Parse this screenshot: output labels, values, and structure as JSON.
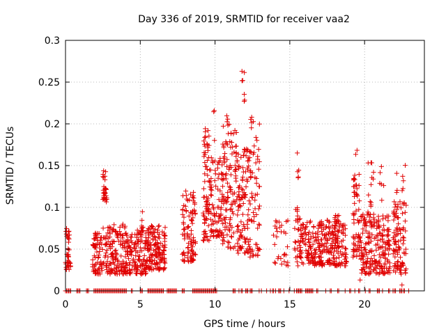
{
  "chart_data": {
    "type": "scatter",
    "title": "Day 336 of 2019, SRMTID for receiver vaa2",
    "xlabel": "GPS time / hours",
    "ylabel": "SRMTID / TECUs",
    "xlim": [
      0,
      24
    ],
    "ylim": [
      0,
      0.3
    ],
    "xticks": [
      0,
      5,
      10,
      15,
      20
    ],
    "yticks": [
      0,
      0.05,
      0.1,
      0.15,
      0.2,
      0.25,
      0.3
    ],
    "xtick_labels": [
      "0",
      "5",
      "10",
      "15",
      "20"
    ],
    "ytick_labels": [
      "0",
      "0.05",
      "0.1",
      "0.15",
      "0.2",
      "0.25",
      "0.3"
    ],
    "grid": true,
    "marker": "+",
    "color": "#e00000",
    "series": [
      {
        "name": "SRMTID",
        "clusters": [
          {
            "x0": 0.0,
            "x1": 0.35,
            "ymin": 0.025,
            "ymax": 0.075,
            "n": 40
          },
          {
            "x0": 1.8,
            "x1": 2.5,
            "ymin": 0.02,
            "ymax": 0.07,
            "n": 70
          },
          {
            "x0": 2.5,
            "x1": 2.8,
            "ymin": 0.105,
            "ymax": 0.145,
            "n": 30
          },
          {
            "x0": 2.5,
            "x1": 4.0,
            "ymin": 0.02,
            "ymax": 0.08,
            "n": 140
          },
          {
            "x0": 4.0,
            "x1": 5.5,
            "ymin": 0.02,
            "ymax": 0.075,
            "n": 150
          },
          {
            "x0": 5.0,
            "x1": 5.2,
            "ymin": 0.07,
            "ymax": 0.097,
            "n": 8
          },
          {
            "x0": 5.5,
            "x1": 6.7,
            "ymin": 0.025,
            "ymax": 0.08,
            "n": 140
          },
          {
            "x0": 7.8,
            "x1": 8.7,
            "ymin": 0.035,
            "ymax": 0.12,
            "n": 100
          },
          {
            "x0": 9.2,
            "x1": 9.6,
            "ymin": 0.06,
            "ymax": 0.21,
            "n": 70
          },
          {
            "x0": 9.6,
            "x1": 10.5,
            "ymin": 0.065,
            "ymax": 0.16,
            "n": 90
          },
          {
            "x0": 9.9,
            "x1": 10.0,
            "ymin": 0.18,
            "ymax": 0.222,
            "n": 3
          },
          {
            "x0": 10.5,
            "x1": 11.5,
            "ymin": 0.05,
            "ymax": 0.2,
            "n": 120
          },
          {
            "x0": 10.7,
            "x1": 10.9,
            "ymin": 0.19,
            "ymax": 0.222,
            "n": 4
          },
          {
            "x0": 11.5,
            "x1": 12.4,
            "ymin": 0.045,
            "ymax": 0.17,
            "n": 110
          },
          {
            "x0": 11.8,
            "x1": 12.0,
            "ymin": 0.225,
            "ymax": 0.265,
            "n": 4
          },
          {
            "x0": 12.3,
            "x1": 13.0,
            "ymin": 0.04,
            "ymax": 0.21,
            "n": 60
          },
          {
            "x0": 13.9,
            "x1": 14.9,
            "ymin": 0.03,
            "ymax": 0.085,
            "n": 30
          },
          {
            "x0": 15.3,
            "x1": 15.7,
            "ymin": 0.03,
            "ymax": 0.1,
            "n": 30
          },
          {
            "x0": 15.4,
            "x1": 15.6,
            "ymin": 0.125,
            "ymax": 0.172,
            "n": 5
          },
          {
            "x0": 15.7,
            "x1": 17.2,
            "ymin": 0.03,
            "ymax": 0.085,
            "n": 140
          },
          {
            "x0": 17.2,
            "x1": 18.8,
            "ymin": 0.03,
            "ymax": 0.085,
            "n": 150
          },
          {
            "x0": 18.0,
            "x1": 18.6,
            "ymin": 0.07,
            "ymax": 0.092,
            "n": 10
          },
          {
            "x0": 19.2,
            "x1": 19.7,
            "ymin": 0.04,
            "ymax": 0.14,
            "n": 60
          },
          {
            "x0": 19.4,
            "x1": 19.5,
            "ymin": 0.16,
            "ymax": 0.178,
            "n": 2
          },
          {
            "x0": 19.7,
            "x1": 20.7,
            "ymin": 0.02,
            "ymax": 0.095,
            "n": 110
          },
          {
            "x0": 20.2,
            "x1": 20.6,
            "ymin": 0.1,
            "ymax": 0.155,
            "n": 12
          },
          {
            "x0": 20.7,
            "x1": 21.7,
            "ymin": 0.02,
            "ymax": 0.09,
            "n": 110
          },
          {
            "x0": 21.0,
            "x1": 21.3,
            "ymin": 0.1,
            "ymax": 0.15,
            "n": 6
          },
          {
            "x0": 21.9,
            "x1": 22.8,
            "ymin": 0.02,
            "ymax": 0.11,
            "n": 100
          },
          {
            "x0": 22.1,
            "x1": 22.8,
            "ymin": 0.115,
            "ymax": 0.155,
            "n": 8
          }
        ],
        "zero_ranges": [
          [
            0.0,
            0.35
          ],
          [
            0.75,
            0.85
          ],
          [
            0.9,
            1.0
          ],
          [
            1.4,
            1.55
          ],
          [
            1.9,
            4.1
          ],
          [
            4.4,
            4.5
          ],
          [
            5.0,
            5.15
          ],
          [
            5.5,
            6.6
          ],
          [
            6.8,
            7.0
          ],
          [
            7.0,
            7.45
          ],
          [
            7.8,
            7.95
          ],
          [
            8.5,
            10.15
          ],
          [
            11.2,
            11.4
          ],
          [
            11.75,
            11.85
          ],
          [
            12.05,
            12.2
          ],
          [
            12.35,
            12.5
          ],
          [
            12.95,
            13.0
          ],
          [
            13.45,
            13.5
          ],
          [
            13.85,
            13.95
          ],
          [
            14.25,
            14.4
          ],
          [
            14.6,
            14.65
          ],
          [
            14.95,
            15.0
          ],
          [
            15.45,
            15.8
          ],
          [
            16.05,
            16.6
          ],
          [
            16.8,
            16.9
          ],
          [
            17.7,
            17.8
          ],
          [
            18.2,
            18.3
          ],
          [
            19.0,
            19.1
          ],
          [
            19.6,
            19.7
          ],
          [
            20.05,
            20.1
          ],
          [
            20.3,
            20.4
          ],
          [
            20.85,
            21.0
          ],
          [
            21.6,
            21.7
          ],
          [
            22.0,
            22.1
          ],
          [
            22.35,
            22.5
          ],
          [
            22.6,
            22.7
          ]
        ],
        "sparse_zero_x": [
          11.6,
          13.1,
          13.7,
          14.05,
          15.3,
          17.4,
          18.7,
          19.35,
          21.2,
          21.9,
          22.95
        ],
        "isolated_points": [
          {
            "x": 22.5,
            "y": 0.007
          },
          {
            "x": 19.7,
            "y": 0.013
          },
          {
            "x": 12.45,
            "y": 0.208
          },
          {
            "x": 11.8,
            "y": 0.263
          },
          {
            "x": 11.85,
            "y": 0.252
          },
          {
            "x": 11.95,
            "y": 0.227
          }
        ]
      }
    ]
  }
}
